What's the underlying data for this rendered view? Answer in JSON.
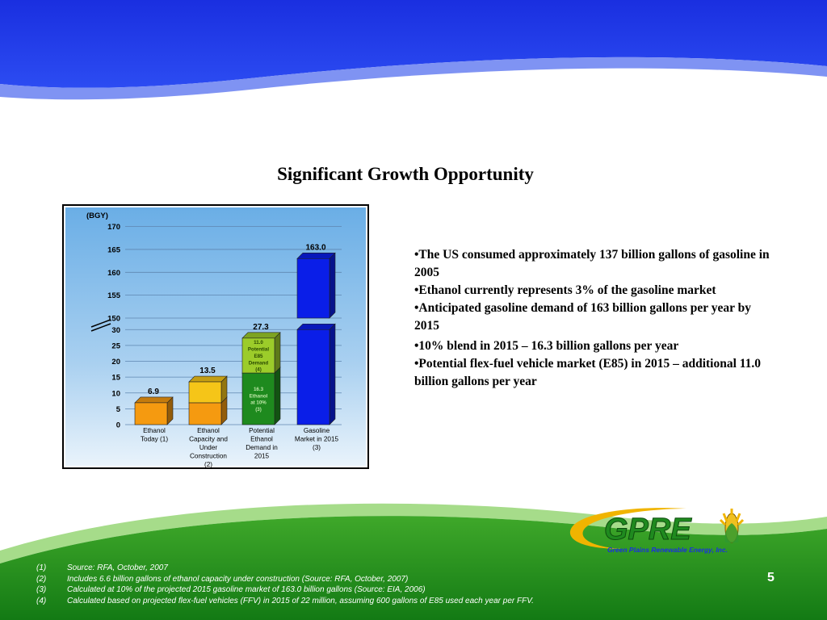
{
  "slide": {
    "title": "Significant Growth Opportunity",
    "page_number": "5",
    "bullets": [
      "•The US consumed approximately 137 billion gallons of gasoline in 2005",
      "•Ethanol currently represents 3% of the gasoline market",
      "•Anticipated gasoline demand of 163 billion gallons per year by 2015",
      "•10% blend in 2015 – 16.3 billion gallons per year",
      "•Potential flex-fuel vehicle market (E85) in 2015 – additional 11.0 billion gallons per year"
    ],
    "footnotes": [
      {
        "num": "(1)",
        "text": "Source:  RFA, October, 2007"
      },
      {
        "num": "(2)",
        "text": "Includes 6.6 billion gallons of ethanol capacity under construction (Source:  RFA, October, 2007)"
      },
      {
        "num": "(3)",
        "text": "Calculated at 10% of the projected 2015 gasoline market of 163.0 billion gallons  (Source:  EIA, 2006)"
      },
      {
        "num": "(4)",
        "text": "Calculated based on projected flex-fuel vehicles (FFV) in 2015 of 22 million, assuming 600 gallons of E85 used each year per FFV."
      }
    ],
    "logo": {
      "mark": "GPRE",
      "tagline": "Green Plains Renewable Energy, Inc."
    },
    "colors": {
      "header_blue": "#1a2fe0",
      "footer_green": "#1f8a1f",
      "logo_gold": "#f0b400"
    }
  },
  "chart_data": {
    "type": "bar",
    "ylabel": "(BGY)",
    "y_ticks_lower": [
      0,
      5,
      10,
      15,
      20,
      25,
      30
    ],
    "y_ticks_upper": [
      150,
      155,
      160,
      165,
      170
    ],
    "axis_break": "between 30 and 150",
    "grid": true,
    "categories": [
      [
        "Ethanol",
        "Today (1)"
      ],
      [
        "Ethanol",
        "Capacity and",
        "Under",
        "Construction",
        "(2)"
      ],
      [
        "Potential",
        "Ethanol",
        "Demand in",
        "2015"
      ],
      [
        "Gasoline",
        "Market in 2015",
        "(3)"
      ]
    ],
    "bars": [
      {
        "total_label": "6.9",
        "segments": [
          {
            "value": 6.9,
            "color": "#f59a10",
            "label": ""
          }
        ]
      },
      {
        "total_label": "13.5",
        "segments": [
          {
            "value": 6.9,
            "color": "#f59a10",
            "label": ""
          },
          {
            "value": 6.6,
            "color": "#f5c518",
            "label": ""
          }
        ]
      },
      {
        "total_label": "27.3",
        "segments": [
          {
            "value": 16.3,
            "color": "#1e8a1e",
            "label": [
              "16.3",
              "Ethanol",
              "at 10%",
              "(3)"
            ]
          },
          {
            "value": 11.0,
            "color": "#9ccc2a",
            "label": [
              "11.0",
              "Potential",
              "E85",
              "Demand",
              "(4)"
            ]
          }
        ]
      },
      {
        "total_label": "163.0",
        "segments": [
          {
            "value": 163.0,
            "color": "#0a1ee8",
            "label": ""
          }
        ]
      }
    ]
  }
}
